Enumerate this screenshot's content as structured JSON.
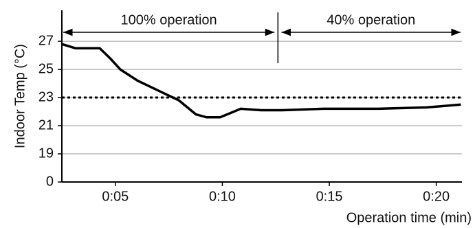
{
  "chart_data": {
    "type": "line",
    "y_label": "Indoor Temp (°C)",
    "x_label": "Operation time (min)",
    "x": [
      2.5,
      3.14,
      4.27,
      4.75,
      5.23,
      6.04,
      7.0,
      7.97,
      8.77,
      9.25,
      9.9,
      10.38,
      10.86,
      11.82,
      12.79,
      14.72,
      17.29,
      19.54,
      21.15
    ],
    "series": [
      {
        "color": "#000000",
        "values": [
          26.8,
          26.5,
          26.5,
          25.8,
          25.0,
          24.2,
          23.5,
          22.8,
          21.8,
          21.6,
          21.6,
          21.9,
          22.2,
          22.1,
          22.1,
          22.2,
          22.2,
          22.3,
          22.5
        ]
      }
    ],
    "xlim": [
      2.5,
      21.2
    ],
    "xticks": [
      {
        "value": 5,
        "label": "0:05"
      },
      {
        "value": 10,
        "label": "0:10"
      },
      {
        "value": 15,
        "label": "0:15"
      },
      {
        "value": 20,
        "label": "0:20"
      }
    ],
    "ylim": [
      0,
      29.2
    ],
    "ybreak": [
      0,
      17
    ],
    "yticks": [
      0,
      19,
      21,
      23,
      25,
      27
    ],
    "grid": true,
    "reference_y": 23,
    "divider_x": 12.6,
    "annotations": [
      {
        "text": "100% operation",
        "x0": 2.5,
        "x1": 12.5
      },
      {
        "text": "40% operation",
        "x0": 12.7,
        "x1": 21.2
      }
    ]
  }
}
